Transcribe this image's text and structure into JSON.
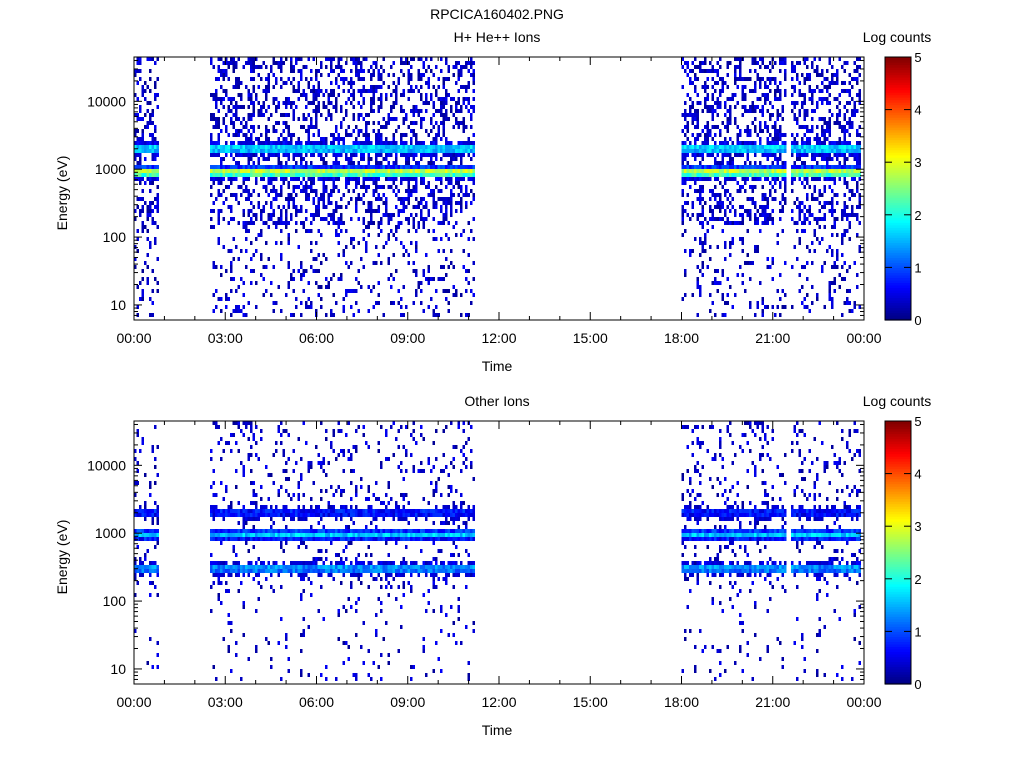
{
  "figure": {
    "file_title": "RPCICA160402.PNG",
    "colormap": [
      "#00007f",
      "#0000ff",
      "#007fff",
      "#00ffff",
      "#7fff7f",
      "#ffff00",
      "#ff7f00",
      "#ff0000",
      "#7f0000"
    ]
  },
  "chart_data": [
    {
      "type": "heatmap",
      "title": "H+ He++ Ions",
      "xlabel": "Time",
      "ylabel": "Energy (eV)",
      "x_ticks": [
        "00:00",
        "03:00",
        "06:00",
        "09:00",
        "12:00",
        "15:00",
        "18:00",
        "21:00",
        "00:00"
      ],
      "xlim_hours": [
        0,
        24
      ],
      "y_scale": "log",
      "y_ticks": [
        "10",
        "100",
        "1000",
        "10000"
      ],
      "ylim": [
        6,
        45000
      ],
      "colorbar": {
        "label": "Log counts",
        "ticks": [
          "0",
          "1",
          "2",
          "3",
          "4",
          "5"
        ],
        "range": [
          0,
          5
        ]
      },
      "data_intervals_hours": [
        [
          0.0,
          0.8
        ],
        [
          2.5,
          11.2
        ],
        [
          18.0,
          21.4
        ],
        [
          21.6,
          23.9
        ]
      ],
      "bands": [
        {
          "energy_eV": 2000,
          "log_counts": 1.9
        },
        {
          "energy_eV": 900,
          "log_counts": 3.0
        }
      ],
      "background_log_counts": 0.4
    },
    {
      "type": "heatmap",
      "title": "Other Ions",
      "xlabel": "Time",
      "ylabel": "Energy (eV)",
      "x_ticks": [
        "00:00",
        "03:00",
        "06:00",
        "09:00",
        "12:00",
        "15:00",
        "18:00",
        "21:00",
        "00:00"
      ],
      "xlim_hours": [
        0,
        24
      ],
      "y_scale": "log",
      "y_ticks": [
        "10",
        "100",
        "1000",
        "10000"
      ],
      "ylim": [
        6,
        45000
      ],
      "colorbar": {
        "label": "Log counts",
        "ticks": [
          "0",
          "1",
          "2",
          "3",
          "4",
          "5"
        ],
        "range": [
          0,
          5
        ]
      },
      "data_intervals_hours": [
        [
          0.0,
          0.8
        ],
        [
          2.5,
          11.2
        ],
        [
          18.0,
          21.4
        ],
        [
          21.6,
          23.9
        ]
      ],
      "bands": [
        {
          "energy_eV": 2000,
          "log_counts": 0.8
        },
        {
          "energy_eV": 950,
          "log_counts": 1.6
        },
        {
          "energy_eV": 300,
          "log_counts": 1.5
        }
      ],
      "background_log_counts": 0.15
    }
  ]
}
